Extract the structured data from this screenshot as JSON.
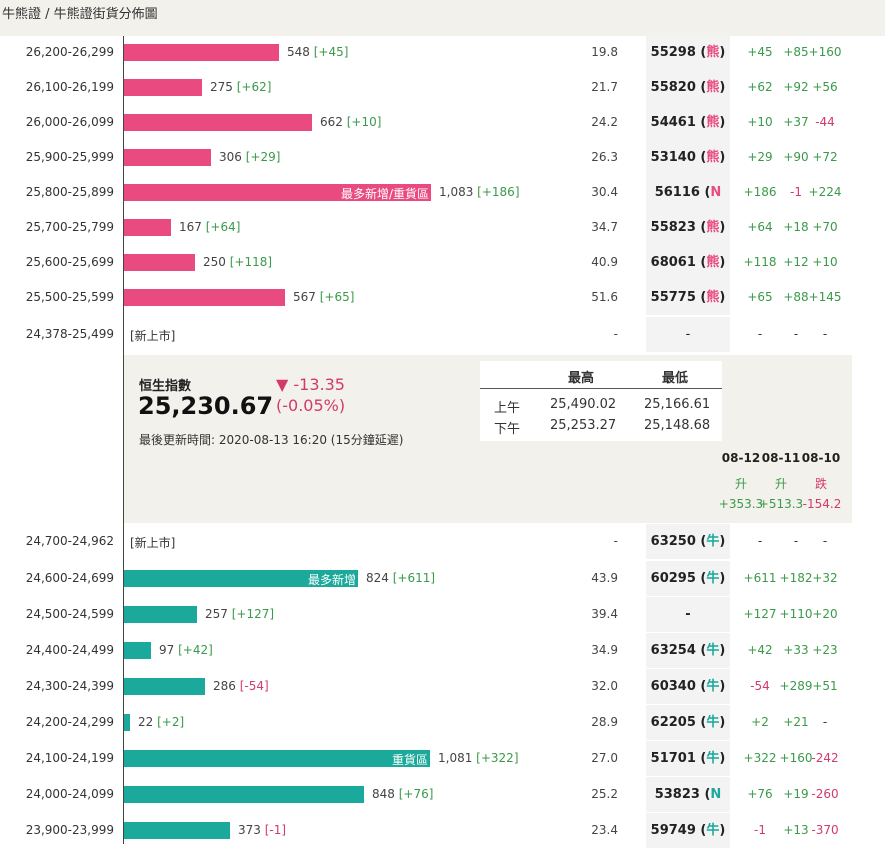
{
  "breadcrumb": "牛熊證 / 牛熊證街貨分佈圖",
  "bear_rows": [
    {
      "range": "26,200-26,299",
      "ratio": 0.3435,
      "label": "",
      "count": "548",
      "change": "[+45]",
      "change_neg": false,
      "pct": "19.8",
      "code": "55298",
      "tag": "熊",
      "d1": "+45",
      "d2": "+85",
      "d3": "+160"
    },
    {
      "range": "26,100-26,199",
      "ratio": 0.1724,
      "label": "",
      "count": "275",
      "change": "[+62]",
      "change_neg": false,
      "pct": "21.7",
      "code": "55820",
      "tag": "熊",
      "d1": "+62",
      "d2": "+92",
      "d3": "+56"
    },
    {
      "range": "26,000-26,099",
      "ratio": 0.415,
      "label": "",
      "count": "662",
      "change": "[+10]",
      "change_neg": false,
      "pct": "24.2",
      "code": "54461",
      "tag": "熊",
      "d1": "+10",
      "d2": "+37",
      "d3": "-44"
    },
    {
      "range": "25,900-25,999",
      "ratio": 0.1918,
      "label": "",
      "count": "306",
      "change": "[+29]",
      "change_neg": false,
      "pct": "26.3",
      "code": "53140",
      "tag": "熊",
      "d1": "+29",
      "d2": "+90",
      "d3": "+72"
    },
    {
      "range": "25,800-25,899",
      "ratio": 0.679,
      "label": "最多新增/重貨區",
      "count": "1,083",
      "change": "[+186]",
      "change_neg": false,
      "pct": "30.4",
      "code": "56116",
      "tag": "N熊",
      "d1": "+186",
      "d2": "-1",
      "d3": "+224"
    },
    {
      "range": "25,700-25,799",
      "ratio": 0.1047,
      "label": "",
      "count": "167",
      "change": "[+64]",
      "change_neg": false,
      "pct": "34.7",
      "code": "55823",
      "tag": "熊",
      "d1": "+64",
      "d2": "+18",
      "d3": "+70"
    },
    {
      "range": "25,600-25,699",
      "ratio": 0.1567,
      "label": "",
      "count": "250",
      "change": "[+118]",
      "change_neg": false,
      "pct": "40.9",
      "code": "68061",
      "tag": "熊",
      "d1": "+118",
      "d2": "+12",
      "d3": "+10"
    },
    {
      "range": "25,500-25,599",
      "ratio": 0.3555,
      "label": "",
      "count": "567",
      "change": "[+65]",
      "change_neg": false,
      "pct": "51.6",
      "code": "55775",
      "tag": "熊",
      "d1": "+65",
      "d2": "+88",
      "d3": "+145"
    }
  ],
  "bear_new": {
    "range": "24,378-25,499",
    "label": "[新上市]",
    "pct": "-",
    "code": "-",
    "d1": "-",
    "d2": "-",
    "d3": "-"
  },
  "index": {
    "name": "恒生指數",
    "value": "25,230.67",
    "arrow": "▼",
    "change": "-13.35",
    "change_pct": "(-0.05%)",
    "updated": "最後更新時間: 2020-08-13 16:20 (15分鐘延遲)",
    "high_header": "最高",
    "low_header": "最低",
    "sessions": [
      {
        "name": "上午",
        "high": "25,490.02",
        "low": "25,166.61"
      },
      {
        "name": "下午",
        "high": "25,253.27",
        "low": "25,148.68"
      }
    ],
    "days": [
      {
        "date": "08-12",
        "dir": "升",
        "value": "+353.3",
        "neg": false
      },
      {
        "date": "08-11",
        "dir": "升",
        "value": "+513.3",
        "neg": false
      },
      {
        "date": "08-10",
        "dir": "跌",
        "value": "-154.2",
        "neg": true
      }
    ]
  },
  "bull_new": {
    "range": "24,700-24,962",
    "label": "[新上市]",
    "pct": "-",
    "code": "63250",
    "tag": "牛",
    "d1": "-",
    "d2": "-",
    "d3": "-"
  },
  "bull_rows": [
    {
      "range": "24,600-24,699",
      "ratio": 0.5166,
      "label": "最多新增",
      "count": "824",
      "change": "[+611]",
      "change_neg": false,
      "pct": "43.9",
      "code": "60295",
      "tag": "牛",
      "d1": "+611",
      "d2": "+182",
      "d3": "+32"
    },
    {
      "range": "24,500-24,599",
      "ratio": 0.1611,
      "label": "",
      "count": "257",
      "change": "[+127]",
      "change_neg": false,
      "pct": "39.4",
      "code": "-",
      "tag": "",
      "d1": "+127",
      "d2": "+110",
      "d3": "+20"
    },
    {
      "range": "24,400-24,499",
      "ratio": 0.0608,
      "label": "",
      "count": "97",
      "change": "[+42]",
      "change_neg": false,
      "pct": "34.9",
      "code": "63254",
      "tag": "牛",
      "d1": "+42",
      "d2": "+33",
      "d3": "+23"
    },
    {
      "range": "24,300-24,399",
      "ratio": 0.1793,
      "label": "",
      "count": "286",
      "change": "[-54]",
      "change_neg": true,
      "pct": "32.0",
      "code": "60340",
      "tag": "牛",
      "d1": "-54",
      "d2": "+289",
      "d3": "+51"
    },
    {
      "range": "24,200-24,299",
      "ratio": 0.0138,
      "label": "",
      "count": "22",
      "change": "[+2]",
      "change_neg": false,
      "pct": "28.9",
      "code": "62205",
      "tag": "牛",
      "d1": "+2",
      "d2": "+21",
      "d3": "-"
    },
    {
      "range": "24,100-24,199",
      "ratio": 0.6777,
      "label": "重貨區",
      "count": "1,081",
      "change": "[+322]",
      "change_neg": false,
      "pct": "27.0",
      "code": "51701",
      "tag": "牛",
      "d1": "+322",
      "d2": "+160",
      "d3": "-242"
    },
    {
      "range": "24,000-24,099",
      "ratio": 0.5317,
      "label": "",
      "count": "848",
      "change": "[+76]",
      "change_neg": false,
      "pct": "25.2",
      "code": "53823",
      "tag": "N牛",
      "d1": "+76",
      "d2": "+19",
      "d3": "-260"
    },
    {
      "range": "23,900-23,999",
      "ratio": 0.2339,
      "label": "",
      "count": "373",
      "change": "[-1]",
      "change_neg": true,
      "pct": "23.4",
      "code": "59749",
      "tag": "牛",
      "d1": "-1",
      "d2": "+13",
      "d3": "-370"
    }
  ],
  "colors": {
    "bear": "#e94b80",
    "bull": "#1aa99b",
    "up": "#3a9a4a",
    "down": "#d23a6a"
  }
}
